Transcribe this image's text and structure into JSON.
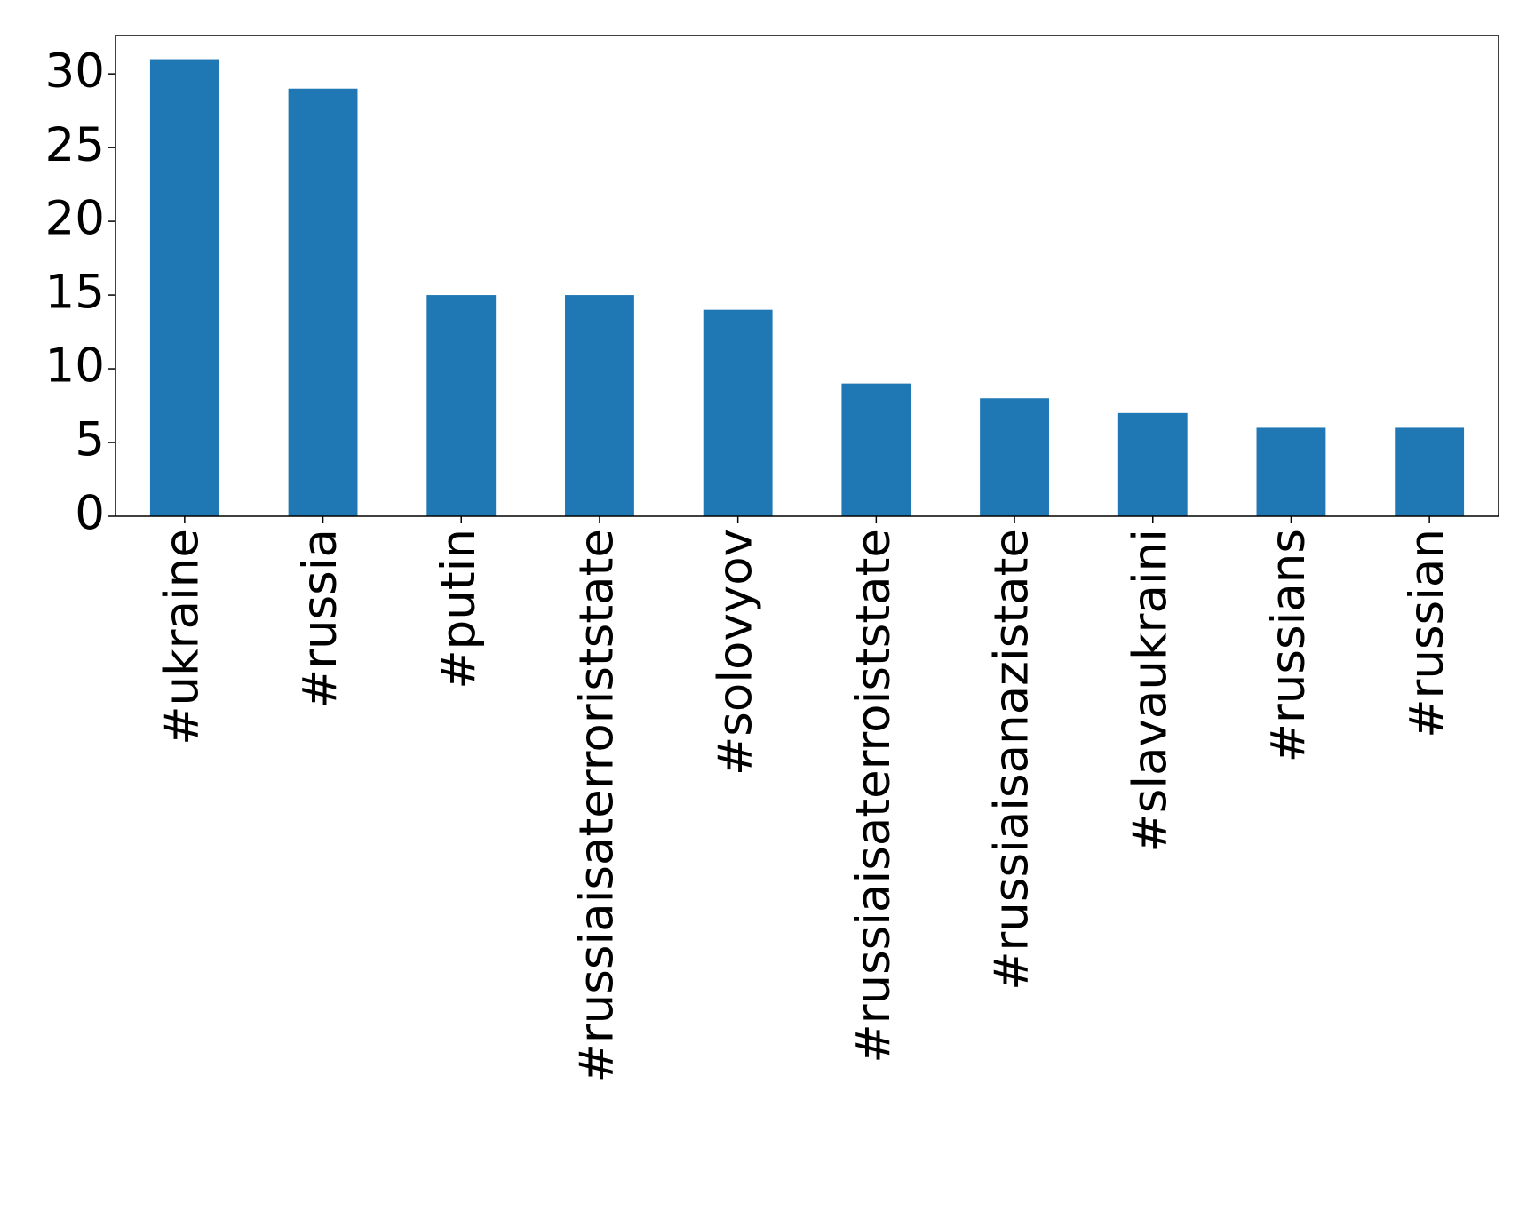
{
  "chart_data": {
    "type": "bar",
    "categories": [
      "#ukraine",
      "#russia",
      "#putin",
      "#russiaisaterroriststate",
      "#solovyov",
      "#russiaisaterroiststate",
      "#russiaisanazistate",
      "#slavaukraini",
      "#russians",
      "#russian"
    ],
    "values": [
      31,
      29,
      15,
      15,
      14,
      9,
      8,
      7,
      6,
      6
    ],
    "color": "#1f77b4",
    "ylim": [
      0,
      32.6
    ],
    "yticks": [
      0,
      5,
      10,
      15,
      20,
      25,
      30
    ],
    "grid": false
  }
}
